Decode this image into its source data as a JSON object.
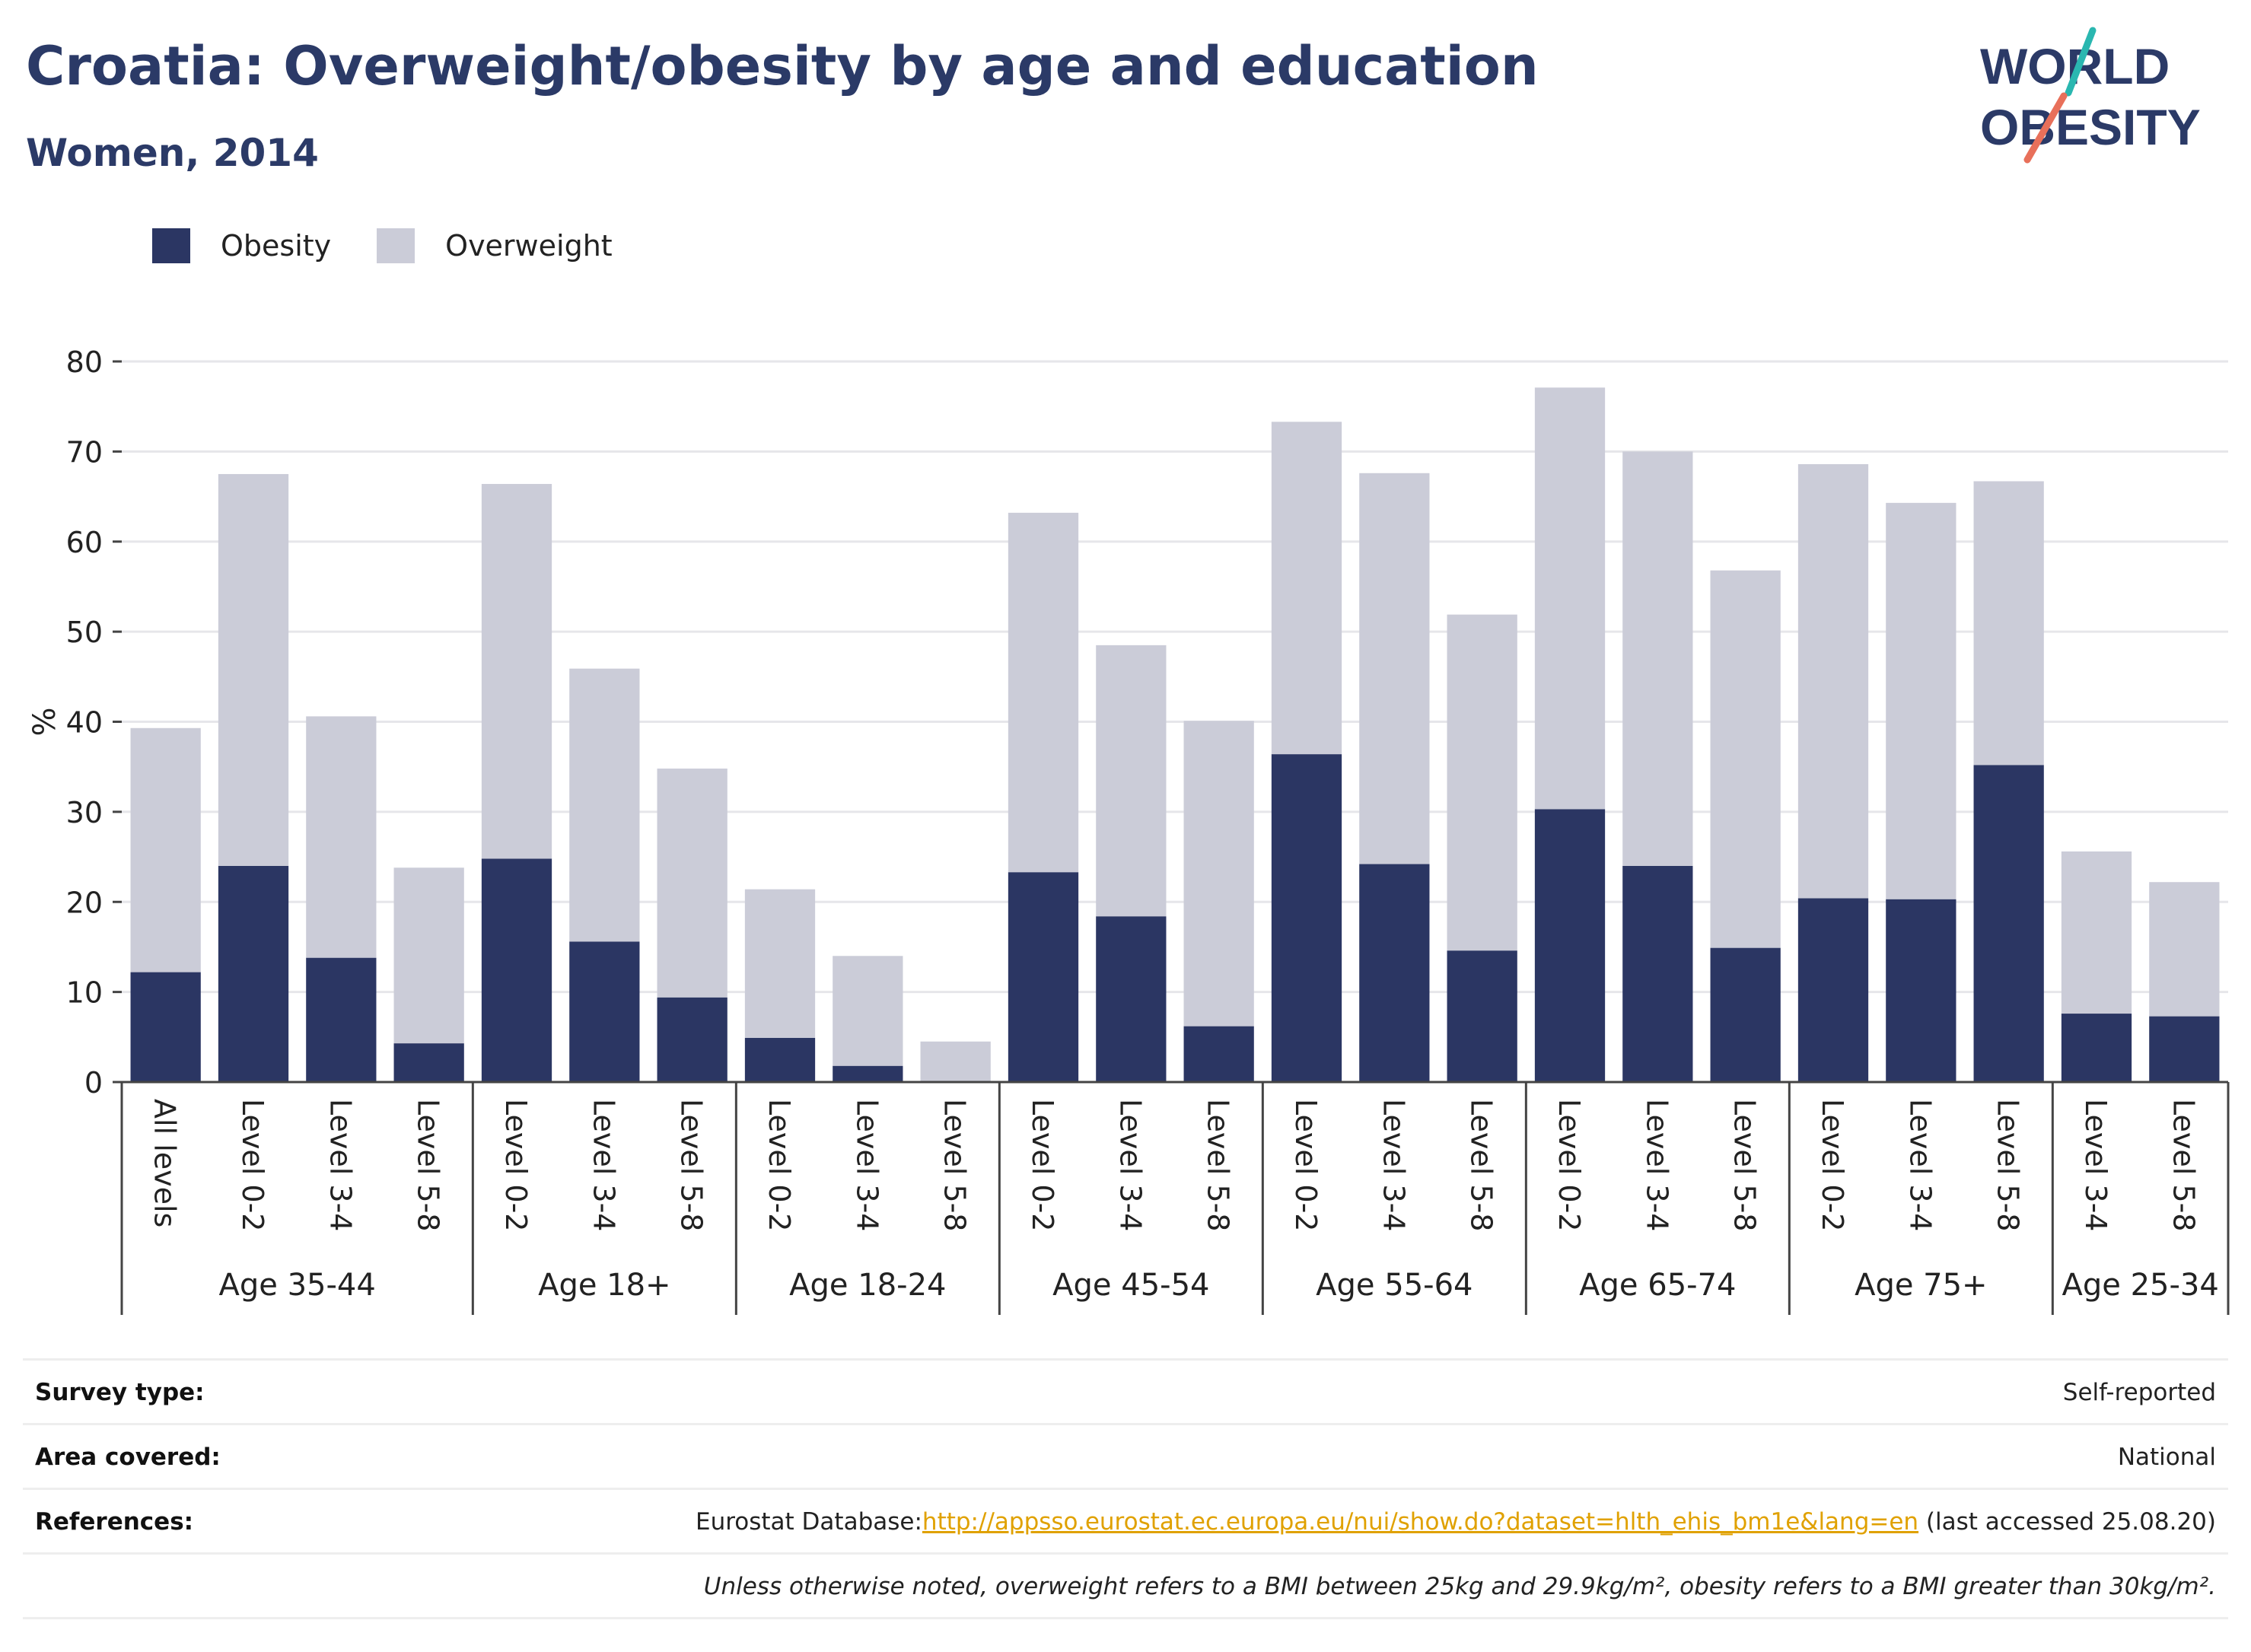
{
  "header": {
    "title": "Croatia: Overweight/obesity by age and education",
    "subtitle": "Women, 2014"
  },
  "logo": {
    "line1": "WORLD",
    "line2": "OBESITY",
    "accent_colors": [
      "#2ab7b0",
      "#e8705a"
    ]
  },
  "legend": [
    {
      "label": "Obesity",
      "color": "#2b3663"
    },
    {
      "label": "Overweight",
      "color": "#cbccd8"
    }
  ],
  "chart_data": {
    "type": "bar",
    "stacked": true,
    "ylabel": "%",
    "ylim": [
      0,
      80
    ],
    "yticks": [
      0,
      10,
      20,
      30,
      40,
      50,
      60,
      70,
      80
    ],
    "grid": true,
    "legend_position": "top-left",
    "groups": [
      {
        "label": "Age 35-44",
        "count": 4
      },
      {
        "label": "Age 18+",
        "count": 3
      },
      {
        "label": "Age 18-24",
        "count": 3
      },
      {
        "label": "Age 45-54",
        "count": 3
      },
      {
        "label": "Age 55-64",
        "count": 3
      },
      {
        "label": "Age 65-74",
        "count": 3
      },
      {
        "label": "Age 75+",
        "count": 3
      },
      {
        "label": "Age 25-34",
        "count": 2
      }
    ],
    "categories": [
      "All levels",
      "Level 0-2",
      "Level 3-4",
      "Level 5-8",
      "Level 0-2",
      "Level 3-4",
      "Level 5-8",
      "Level 0-2",
      "Level 3-4",
      "Level 5-8",
      "Level 0-2",
      "Level 3-4",
      "Level 5-8",
      "Level 0-2",
      "Level 3-4",
      "Level 5-8",
      "Level 0-2",
      "Level 3-4",
      "Level 5-8",
      "Level 0-2",
      "Level 3-4",
      "Level 5-8",
      "Level 3-4",
      "Level 5-8"
    ],
    "series": [
      {
        "name": "Obesity",
        "color": "#2b3663",
        "values": [
          12.2,
          24.0,
          13.8,
          4.3,
          24.8,
          15.6,
          9.4,
          4.9,
          1.8,
          0.0,
          23.3,
          18.4,
          6.2,
          36.4,
          24.2,
          14.6,
          30.3,
          24.0,
          14.9,
          20.4,
          20.3,
          35.2,
          7.6,
          7.3
        ]
      },
      {
        "name": "Overweight",
        "color": "#cbccd8",
        "values": [
          27.1,
          43.5,
          26.8,
          19.5,
          41.6,
          30.3,
          25.4,
          16.5,
          12.2,
          4.5,
          39.9,
          30.1,
          33.9,
          36.9,
          43.4,
          37.3,
          46.8,
          46.0,
          41.9,
          48.2,
          44.0,
          31.5,
          18.0,
          14.9
        ]
      }
    ]
  },
  "info": {
    "survey_type": {
      "label": "Survey type:",
      "value": "Self-reported"
    },
    "area_covered": {
      "label": "Area covered:",
      "value": "National"
    },
    "references": {
      "label": "References:",
      "prefix": "Eurostat Database:",
      "url": "http://appsso.eurostat.ec.europa.eu/nui/show.do?dataset=hlth_ehis_bm1e&lang=en",
      "suffix": " (last accessed 25.08.20)"
    },
    "note": "Unless otherwise noted, overweight refers to a BMI between 25kg and 29.9kg/m², obesity refers to a BMI greater than 30kg/m²."
  }
}
